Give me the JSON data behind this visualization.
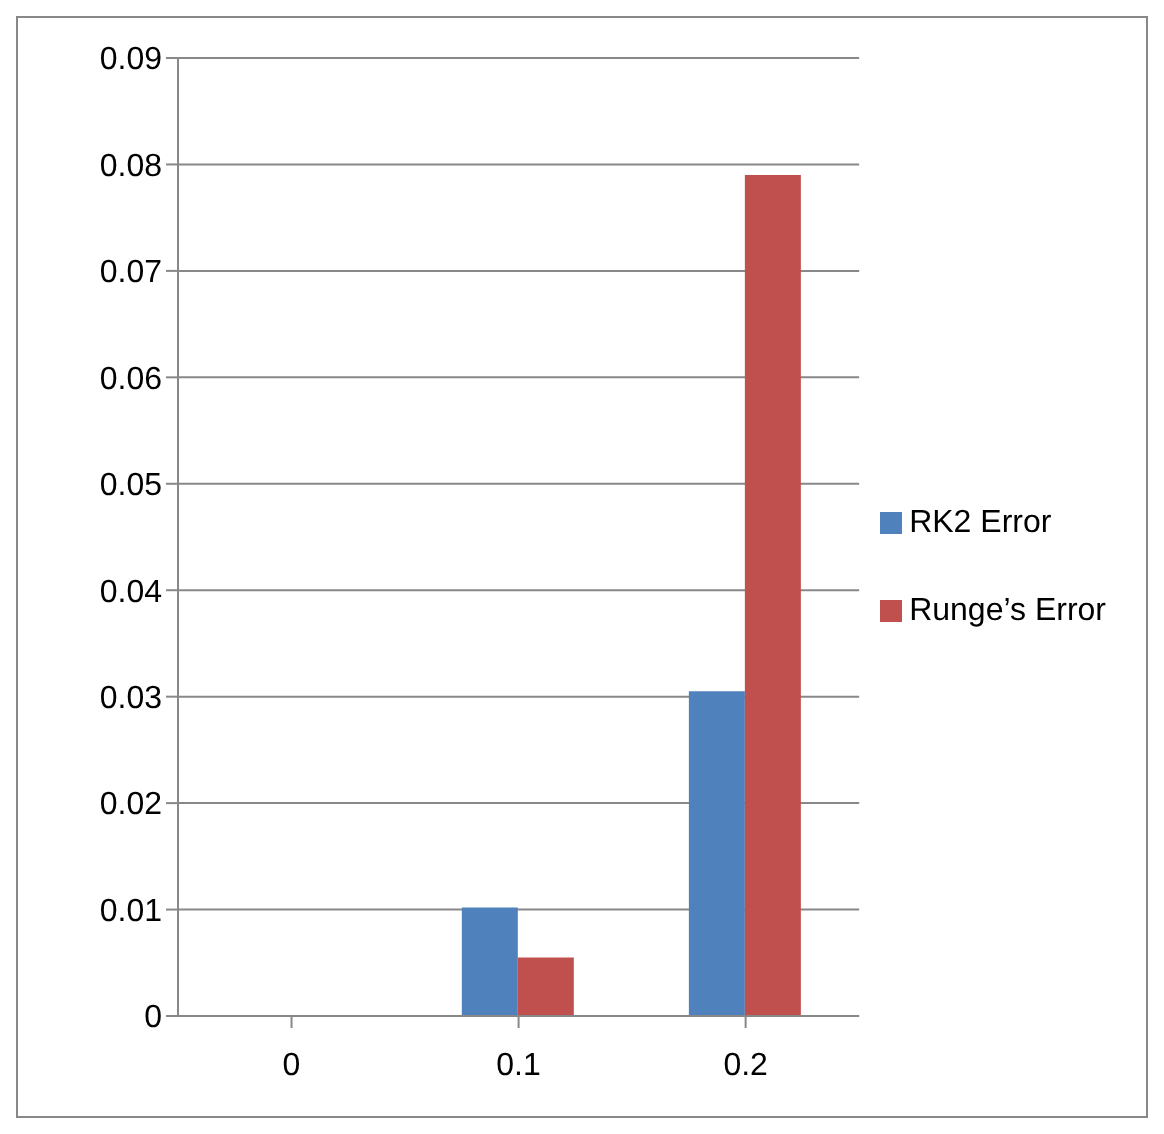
{
  "chart_data": {
    "type": "bar",
    "categories": [
      "0",
      "0.1",
      "0.2"
    ],
    "series": [
      {
        "name": "RK2 Error",
        "color": "#4f81bd",
        "values": [
          0,
          0.0102,
          0.0305
        ]
      },
      {
        "name": "Runge’s Error",
        "color": "#c0504d",
        "values": [
          0,
          0.0055,
          0.079
        ]
      }
    ],
    "ylim": [
      0,
      0.09
    ],
    "yticks": [
      0,
      0.01,
      0.02,
      0.03,
      0.04,
      0.05,
      0.06,
      0.07,
      0.08,
      0.09
    ],
    "grid": "y",
    "legend": "right"
  }
}
